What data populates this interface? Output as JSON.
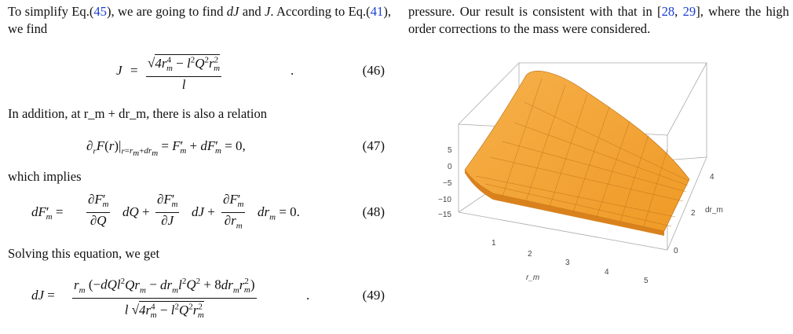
{
  "left": {
    "intro_a": "To simplify Eq.(",
    "ref_45": "45",
    "intro_b": "), we are going to find ",
    "intro_c": "dJ",
    "intro_d": " and ",
    "intro_e": "J",
    "intro_f": ". According to Eq.(",
    "ref_41": "41",
    "intro_g": "), we find",
    "eq46_num": "(46)",
    "text2": "In addition, at r_m + dr_m, there is also a relation",
    "eq47_num": "(47)",
    "text3": "which implies",
    "eq48_num": "(48)",
    "text4": "Solving this equation, we get",
    "eq49_num": "(49)"
  },
  "right": {
    "text_a": "pressure. Our result is consistent with that in [",
    "ref_28": "28",
    "text_b": ", ",
    "ref_29": "29",
    "text_c": "], where the high order corrections to the mass were considered."
  },
  "plot": {
    "z_ticks": [
      "5",
      "0",
      "−5",
      "−10",
      "−15"
    ],
    "x_ticks": [
      "1",
      "2",
      "3",
      "4",
      "5"
    ],
    "y_ticks": [
      "0",
      "2",
      "4"
    ],
    "x_label": "r_m",
    "y_label": "dr_m",
    "surface_color": "#f5a53a"
  }
}
